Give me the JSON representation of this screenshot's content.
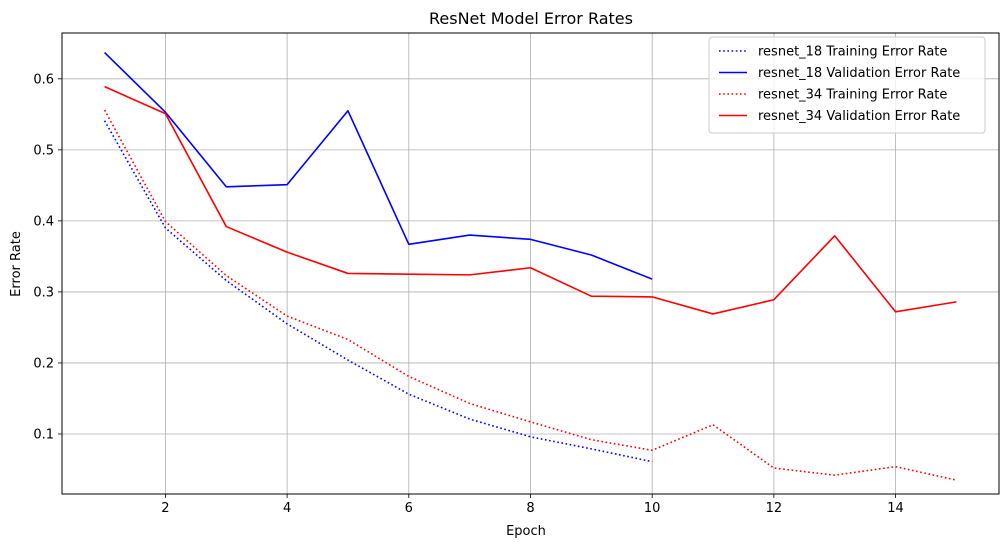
{
  "chart_data": {
    "type": "line",
    "title": "ResNet Model Error Rates",
    "xlabel": "Epoch",
    "ylabel": "Error Rate",
    "xlim": [
      0.3,
      15.7
    ],
    "ylim": [
      0.0155,
      0.6645
    ],
    "xticks": [
      2,
      4,
      6,
      8,
      10,
      12,
      14
    ],
    "yticks": [
      0.1,
      0.2,
      0.3,
      0.4,
      0.5,
      0.6
    ],
    "grid": true,
    "legend_position": "top-right",
    "series": [
      {
        "name": "resnet_18 Training Error Rate",
        "color": "#0000ff",
        "style": "dotted",
        "x": [
          1,
          2,
          3,
          4,
          5,
          6,
          7,
          8,
          9,
          10
        ],
        "y": [
          0.541,
          0.39,
          0.316,
          0.255,
          0.204,
          0.156,
          0.121,
          0.096,
          0.079,
          0.061
        ]
      },
      {
        "name": "resnet_18 Validation Error Rate",
        "color": "#0000ff",
        "style": "solid",
        "x": [
          1,
          2,
          3,
          4,
          5,
          6,
          7,
          8,
          9,
          10
        ],
        "y": [
          0.637,
          0.553,
          0.448,
          0.451,
          0.555,
          0.367,
          0.38,
          0.374,
          0.352,
          0.318
        ]
      },
      {
        "name": "resnet_34 Training Error Rate",
        "color": "#ff0000",
        "style": "dotted",
        "x": [
          1,
          2,
          3,
          4,
          5,
          6,
          7,
          8,
          9,
          10,
          11,
          12,
          13,
          14,
          15
        ],
        "y": [
          0.556,
          0.399,
          0.323,
          0.266,
          0.233,
          0.181,
          0.143,
          0.117,
          0.092,
          0.077,
          0.113,
          0.052,
          0.042,
          0.054,
          0.035
        ]
      },
      {
        "name": "resnet_34 Validation Error Rate",
        "color": "#ff0000",
        "style": "solid",
        "x": [
          1,
          2,
          3,
          4,
          5,
          6,
          7,
          8,
          9,
          10,
          11,
          12,
          13,
          14,
          15
        ],
        "y": [
          0.589,
          0.551,
          0.392,
          0.356,
          0.326,
          0.325,
          0.324,
          0.334,
          0.294,
          0.293,
          0.269,
          0.289,
          0.379,
          0.272,
          0.286
        ]
      }
    ]
  }
}
